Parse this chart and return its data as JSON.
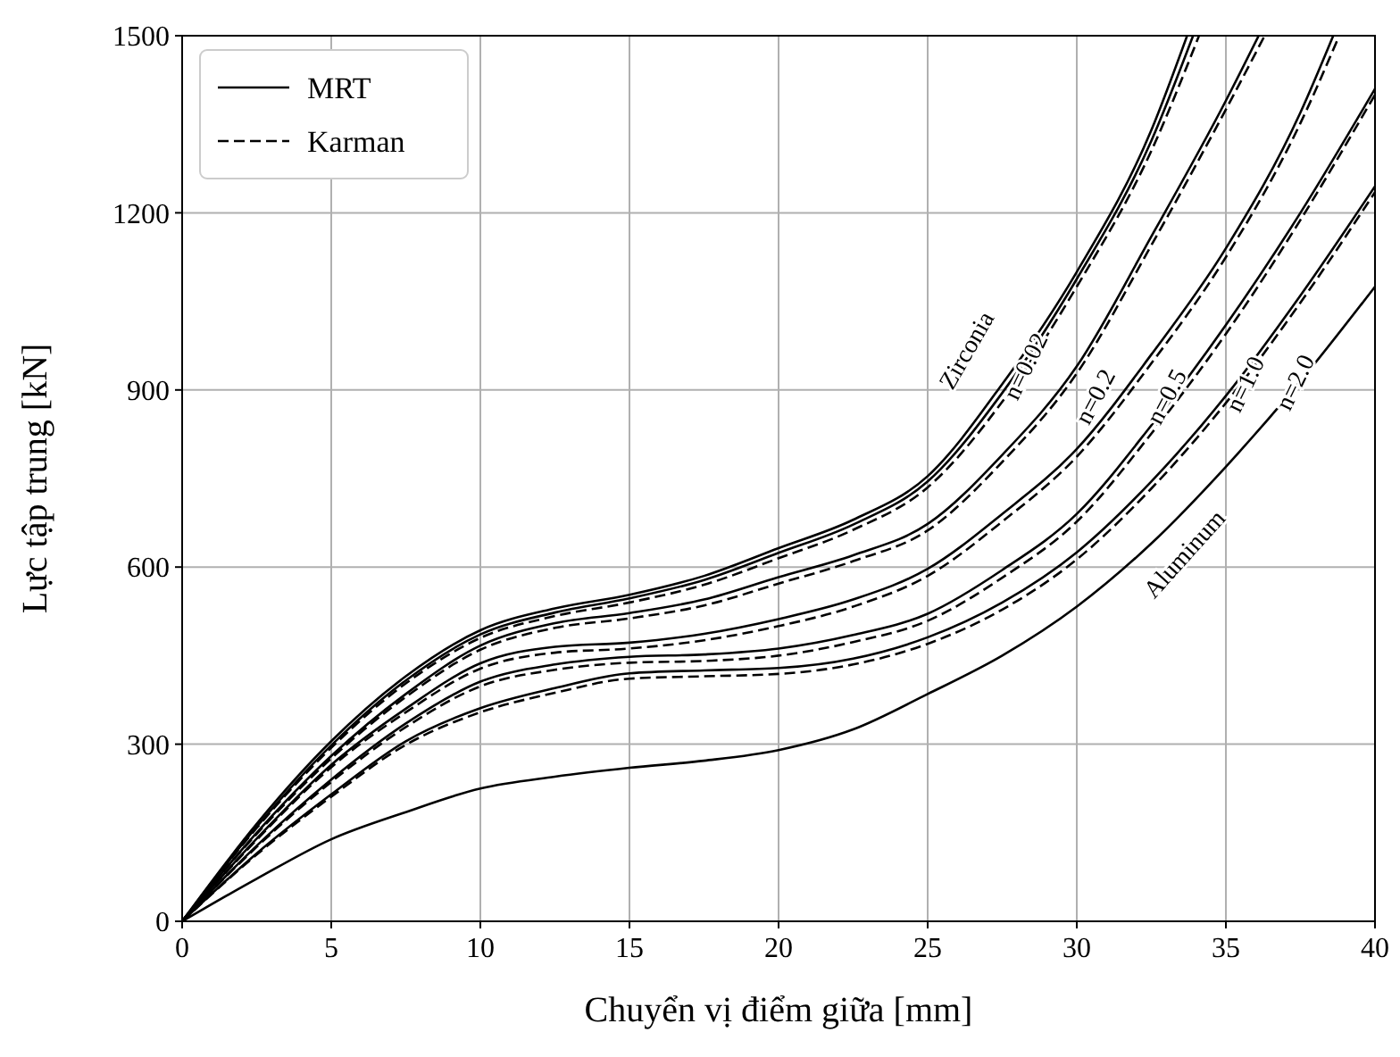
{
  "chart_data": {
    "type": "line",
    "xlabel": "Chuyển vị điểm giữa [mm]",
    "ylabel": "Lực tập trung [kN]",
    "xlim": [
      0,
      40
    ],
    "ylim": [
      0,
      1500
    ],
    "xticks": [
      0,
      5,
      10,
      15,
      20,
      25,
      30,
      35,
      40
    ],
    "yticks": [
      0,
      300,
      600,
      900,
      1200,
      1500
    ],
    "grid": true,
    "legend": "top left",
    "marker": "none",
    "series": [
      {
        "name": "MRT",
        "color": "#000000",
        "line_style": "solid",
        "x": [
          0,
          2.5,
          5,
          7.5,
          10,
          12.5,
          15,
          17.5,
          20,
          22.5,
          25,
          27.5,
          30,
          32.5,
          33.7
        ],
        "values": [
          0,
          165,
          305,
          415,
          493,
          530,
          553,
          585,
          632,
          680,
          754,
          910,
          1100,
          1340,
          1500
        ]
      },
      {
        "name": "Karman",
        "color": "#000000",
        "line_style": "dashed",
        "x": [
          0,
          2.5,
          5,
          7.5,
          10,
          12.5,
          15,
          17.5,
          20,
          22.5,
          25,
          27.5,
          30,
          32.5,
          34.1
        ],
        "values": [
          0,
          158,
          294,
          403,
          480,
          517,
          540,
          570,
          615,
          663,
          735,
          880,
          1075,
          1305,
          1500
        ]
      },
      {
        "color": "#000000",
        "line_style": "solid",
        "x": [
          0,
          2.5,
          5,
          7.5,
          10,
          12.5,
          15,
          17.5,
          20,
          22.5,
          25,
          27.5,
          30,
          32.5,
          33.9
        ],
        "values": [
          0,
          160,
          298,
          408,
          486,
          523,
          547,
          578,
          624,
          672,
          745,
          895,
          1088,
          1322,
          1500
        ]
      },
      {
        "color": "#000000",
        "line_style": "solid",
        "x": [
          0,
          2.5,
          5,
          7.5,
          10,
          12.5,
          15,
          17.5,
          20,
          22.5,
          25,
          27.5,
          30,
          32.5,
          35,
          36.1
        ],
        "values": [
          0,
          150,
          280,
          385,
          467,
          505,
          522,
          545,
          583,
          620,
          673,
          790,
          940,
          1160,
          1390,
          1500
        ]
      },
      {
        "color": "#000000",
        "line_style": "dashed",
        "x": [
          0,
          2.5,
          5,
          7.5,
          10,
          12.5,
          15,
          17.5,
          20,
          22.5,
          25,
          27.5,
          30,
          32.5,
          35,
          36.3
        ],
        "values": [
          0,
          148,
          276,
          380,
          460,
          497,
          513,
          535,
          572,
          610,
          662,
          778,
          928,
          1145,
          1375,
          1500
        ]
      },
      {
        "color": "#000000",
        "line_style": "solid",
        "x": [
          0,
          2.5,
          5,
          7.5,
          10,
          12.5,
          15,
          17.5,
          20,
          22.5,
          25,
          27.5,
          30,
          32.5,
          35,
          37.5,
          38.6
        ],
        "values": [
          0,
          140,
          265,
          360,
          437,
          465,
          472,
          487,
          512,
          545,
          597,
          690,
          800,
          960,
          1140,
          1370,
          1500
        ]
      },
      {
        "color": "#000000",
        "line_style": "dashed",
        "x": [
          0,
          2.5,
          5,
          7.5,
          10,
          12.5,
          15,
          17.5,
          20,
          22.5,
          25,
          27.5,
          30,
          32.5,
          35,
          37.5,
          38.8
        ],
        "values": [
          0,
          138,
          261,
          354,
          428,
          455,
          462,
          476,
          500,
          533,
          585,
          677,
          787,
          945,
          1125,
          1352,
          1500
        ]
      },
      {
        "color": "#000000",
        "line_style": "solid",
        "x": [
          0,
          2.5,
          5,
          7.5,
          10,
          12.5,
          15,
          17.5,
          20,
          22.5,
          25,
          27.5,
          30,
          32.5,
          35,
          37.5,
          40
        ],
        "values": [
          0,
          128,
          240,
          335,
          406,
          435,
          448,
          452,
          462,
          485,
          521,
          595,
          690,
          840,
          1010,
          1200,
          1410
        ]
      },
      {
        "color": "#000000",
        "line_style": "dashed",
        "x": [
          0,
          2.5,
          5,
          7.5,
          10,
          12.5,
          15,
          17.5,
          20,
          22.5,
          25,
          27.5,
          30,
          32.5,
          35,
          37.5,
          40
        ],
        "values": [
          0,
          126,
          236,
          329,
          398,
          426,
          438,
          441,
          450,
          473,
          509,
          582,
          677,
          826,
          995,
          1188,
          1400
        ]
      },
      {
        "color": "#000000",
        "line_style": "solid",
        "x": [
          0,
          2.5,
          5,
          7.5,
          10,
          12.5,
          15,
          17.5,
          20,
          22.5,
          25,
          27.5,
          30,
          32.5,
          35,
          37.5,
          40
        ],
        "values": [
          0,
          115,
          215,
          305,
          361,
          395,
          420,
          425,
          429,
          445,
          481,
          540,
          625,
          745,
          890,
          1060,
          1245
        ]
      },
      {
        "color": "#000000",
        "line_style": "dashed",
        "x": [
          0,
          2.5,
          5,
          7.5,
          10,
          12.5,
          15,
          17.5,
          20,
          22.5,
          25,
          27.5,
          30,
          32.5,
          35,
          37.5,
          40
        ],
        "values": [
          0,
          113,
          211,
          299,
          354,
          387,
          411,
          415,
          419,
          435,
          470,
          528,
          613,
          733,
          878,
          1048,
          1235
        ]
      },
      {
        "color": "#000000",
        "line_style": "solid",
        "x": [
          0,
          2.5,
          5,
          7.5,
          10,
          12.5,
          15,
          17.5,
          20,
          22.5,
          25,
          27.5,
          30,
          32.5,
          35,
          37.5,
          40
        ],
        "values": [
          0,
          72,
          139,
          185,
          225,
          245,
          260,
          272,
          290,
          325,
          385,
          450,
          533,
          640,
          770,
          915,
          1075
        ]
      }
    ],
    "annotations": [
      "Zirconia",
      "n=0.02",
      "n=0.2",
      "n=0.5",
      "n=1.0",
      "n=2.0",
      "Aluminum"
    ]
  }
}
